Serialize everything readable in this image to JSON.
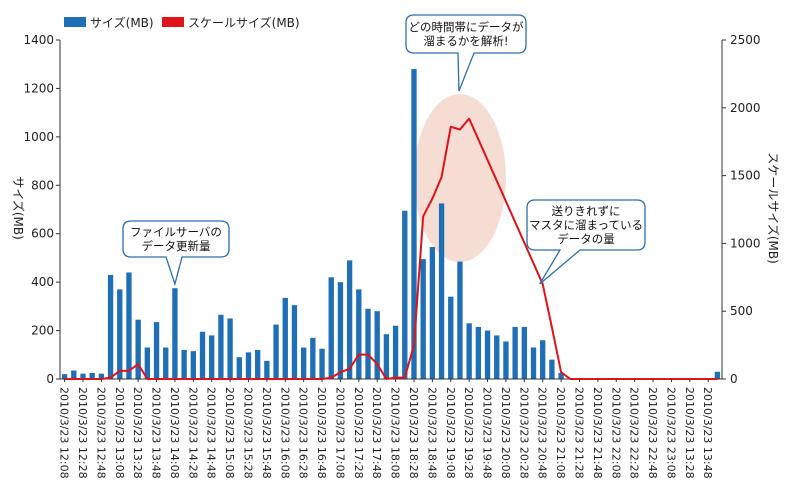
{
  "chart_data": {
    "type": "bar",
    "title": "",
    "legend": [
      {
        "name": "サイズ(MB)",
        "color": "#1f6fb6",
        "kind": "bar"
      },
      {
        "name": "スケールサイズ(MB)",
        "color": "#e0121a",
        "kind": "line"
      }
    ],
    "ylabel_left": "サイズ(MB)",
    "ylabel_right": "スケールサイズ(MB)",
    "ylim_left": [
      0,
      1400
    ],
    "ylim_right": [
      0,
      2500
    ],
    "yticks_left": [
      0,
      200,
      400,
      600,
      800,
      1000,
      1200,
      1400
    ],
    "yticks_right": [
      0,
      500,
      1000,
      1500,
      2000,
      2500
    ],
    "grid": false,
    "xtick_labels": [
      "2010/3/23 12:08",
      "2010/3/23 12:28",
      "2010/3/23 12:48",
      "2010/3/23 13:08",
      "2010/3/23 13:28",
      "2010/3/23 13:48",
      "2010/3/23 14:08",
      "2010/3/23 14:28",
      "2010/3/23 14:48",
      "2010/3/23 15:08",
      "2010/3/23 15:28",
      "2010/3/23 15:48",
      "2010/3/23 16:08",
      "2010/3/23 16:28",
      "2010/3/23 16:48",
      "2010/3/23 17:08",
      "2010/3/23 17:28",
      "2010/3/23 17:48",
      "2010/3/23 18:08",
      "2010/3/23 18:28",
      "2010/3/23 18:48",
      "2010/3/23 19:08",
      "2010/3/23 19:28",
      "2010/3/23 19:48",
      "2010/3/23 20:08",
      "2010/3/23 20:28",
      "2010/3/23 20:48",
      "2010/3/23 21:08",
      "2010/3/23 21:28",
      "2010/3/23 21:48",
      "2010/3/23 22:08",
      "2010/3/23 22:28",
      "2010/3/23 22:48",
      "2010/3/23 23:08",
      "2010/3/23 13:28",
      "2010/3/23 13:48"
    ],
    "bar_values": [
      20,
      35,
      22,
      25,
      22,
      430,
      370,
      440,
      245,
      130,
      235,
      130,
      375,
      120,
      115,
      195,
      180,
      265,
      250,
      90,
      110,
      120,
      75,
      225,
      335,
      305,
      130,
      170,
      125,
      420,
      400,
      490,
      370,
      290,
      280,
      185,
      220,
      695,
      1280,
      495,
      545,
      725,
      340,
      485,
      230,
      215,
      200,
      180,
      155,
      215,
      215,
      130,
      160,
      80,
      25,
      0,
      0,
      0,
      0,
      0,
      0,
      0,
      0,
      0,
      0,
      0,
      0,
      0,
      0,
      0,
      0,
      30
    ],
    "line_points": [
      [
        0,
        0
      ],
      [
        4,
        0
      ],
      [
        5,
        10
      ],
      [
        6,
        60
      ],
      [
        7,
        60
      ],
      [
        8,
        110
      ],
      [
        9,
        0
      ],
      [
        28,
        0
      ],
      [
        29,
        10
      ],
      [
        30,
        50
      ],
      [
        31,
        75
      ],
      [
        32,
        180
      ],
      [
        33,
        180
      ],
      [
        34,
        110
      ],
      [
        35,
        0
      ],
      [
        36,
        10
      ],
      [
        37,
        10
      ],
      [
        38,
        250
      ],
      [
        39,
        1200
      ],
      [
        40,
        1330
      ],
      [
        41,
        1490
      ],
      [
        42,
        1860
      ],
      [
        43,
        1840
      ],
      [
        44,
        1920
      ],
      [
        52,
        700
      ],
      [
        53,
        380
      ],
      [
        54,
        50
      ],
      [
        55,
        0
      ],
      [
        71,
        0
      ]
    ],
    "highlight": {
      "center_index": 43,
      "y_left": 830
    },
    "annotations": [
      {
        "lines": [
          "ファイルサーバの",
          "データ更新量"
        ],
        "target_index": 12
      },
      {
        "lines": [
          "どの時間帯にデータが",
          "溜まるかを解析!"
        ],
        "target_index": 43
      },
      {
        "lines": [
          "送りきれずに",
          "マスタに溜まっている",
          "データの量"
        ],
        "target_index": 52
      }
    ]
  }
}
